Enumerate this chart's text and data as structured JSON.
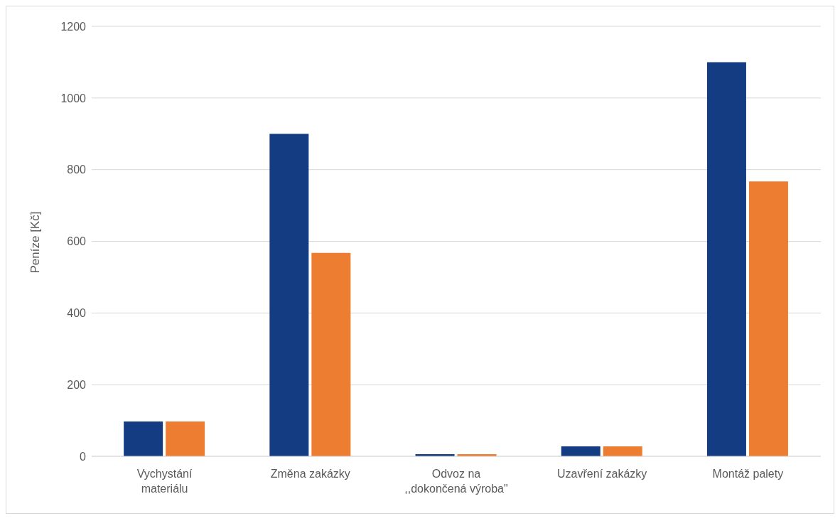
{
  "chart_data": {
    "type": "bar",
    "ylabel": "Peníze [Kč]",
    "categories": [
      "Vychystání materiálu",
      "Změna zakázky",
      "Odvoz na ,,dokončená výroba\"",
      "Uzavření zakázky",
      "Montáž palety"
    ],
    "series": [
      {
        "color": "#143c82",
        "values": [
          97,
          900,
          6,
          28,
          1100
        ]
      },
      {
        "color": "#ed7d31",
        "values": [
          97,
          568,
          6,
          28,
          767
        ]
      }
    ],
    "ylim": [
      0,
      1200
    ],
    "yticks": [
      0,
      200,
      400,
      600,
      800,
      1000,
      1200
    ],
    "grid": "y",
    "legend": false
  }
}
